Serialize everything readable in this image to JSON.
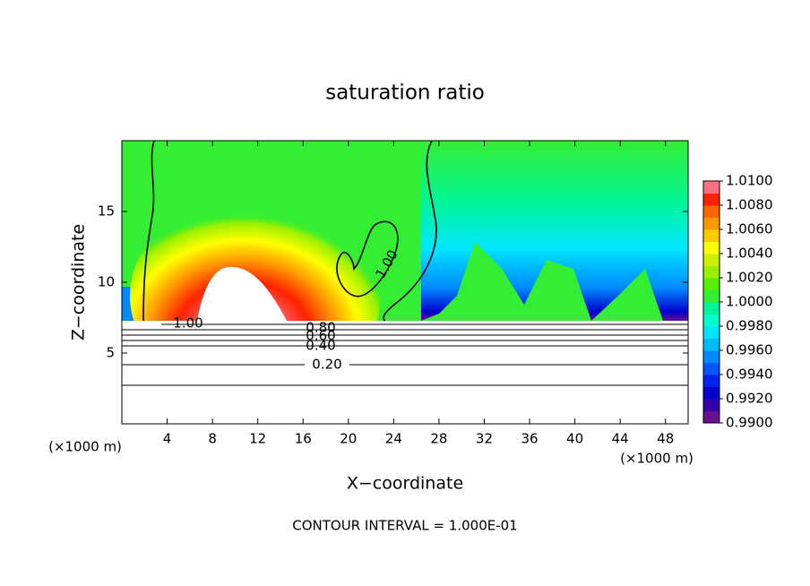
{
  "chart_data": {
    "type": "contour",
    "title": "saturation ratio",
    "x_label": "X−coordinate",
    "y_label": "Z−coordinate",
    "x_unit": "(×1000 m)",
    "y_unit": "(×1000 m)",
    "xlim": [
      0,
      50
    ],
    "xticks": [
      4,
      8,
      12,
      16,
      20,
      24,
      28,
      32,
      36,
      40,
      44,
      48
    ],
    "ylim": [
      0,
      20
    ],
    "yticks": [
      5,
      10,
      15
    ],
    "colorbar": {
      "lim": [
        0.99,
        1.01
      ],
      "ticks": [
        {
          "value": 0.99,
          "label": "0.9900"
        },
        {
          "value": 0.992,
          "label": "0.9920"
        },
        {
          "value": 0.994,
          "label": "0.9940"
        },
        {
          "value": 0.996,
          "label": "0.9960"
        },
        {
          "value": 0.998,
          "label": "0.9980"
        },
        {
          "value": 1.0,
          "label": "1.0000"
        },
        {
          "value": 1.002,
          "label": "1.0020"
        },
        {
          "value": 1.004,
          "label": "1.0040"
        },
        {
          "value": 1.006,
          "label": "1.0060"
        },
        {
          "value": 1.008,
          "label": "1.0080"
        },
        {
          "value": 1.01,
          "label": "1.0100"
        }
      ],
      "colors": [
        "#6a0f8e",
        "#3300aa",
        "#0000cc",
        "#0022ee",
        "#0055ff",
        "#0088ff",
        "#00bbff",
        "#00e5ff",
        "#00ffcc",
        "#00f59a",
        "#33ee33",
        "#55f000",
        "#99f000",
        "#ccf000",
        "#ffff00",
        "#ffcc00",
        "#ff9900",
        "#ff6600",
        "#ff2200",
        "#ff7080"
      ]
    },
    "contour_labels": [
      "1.00",
      "0.80",
      "0.60",
      "0.40",
      "0.20",
      "1.00"
    ],
    "footer": "CONTOUR INTERVAL = 1.000E-01"
  }
}
